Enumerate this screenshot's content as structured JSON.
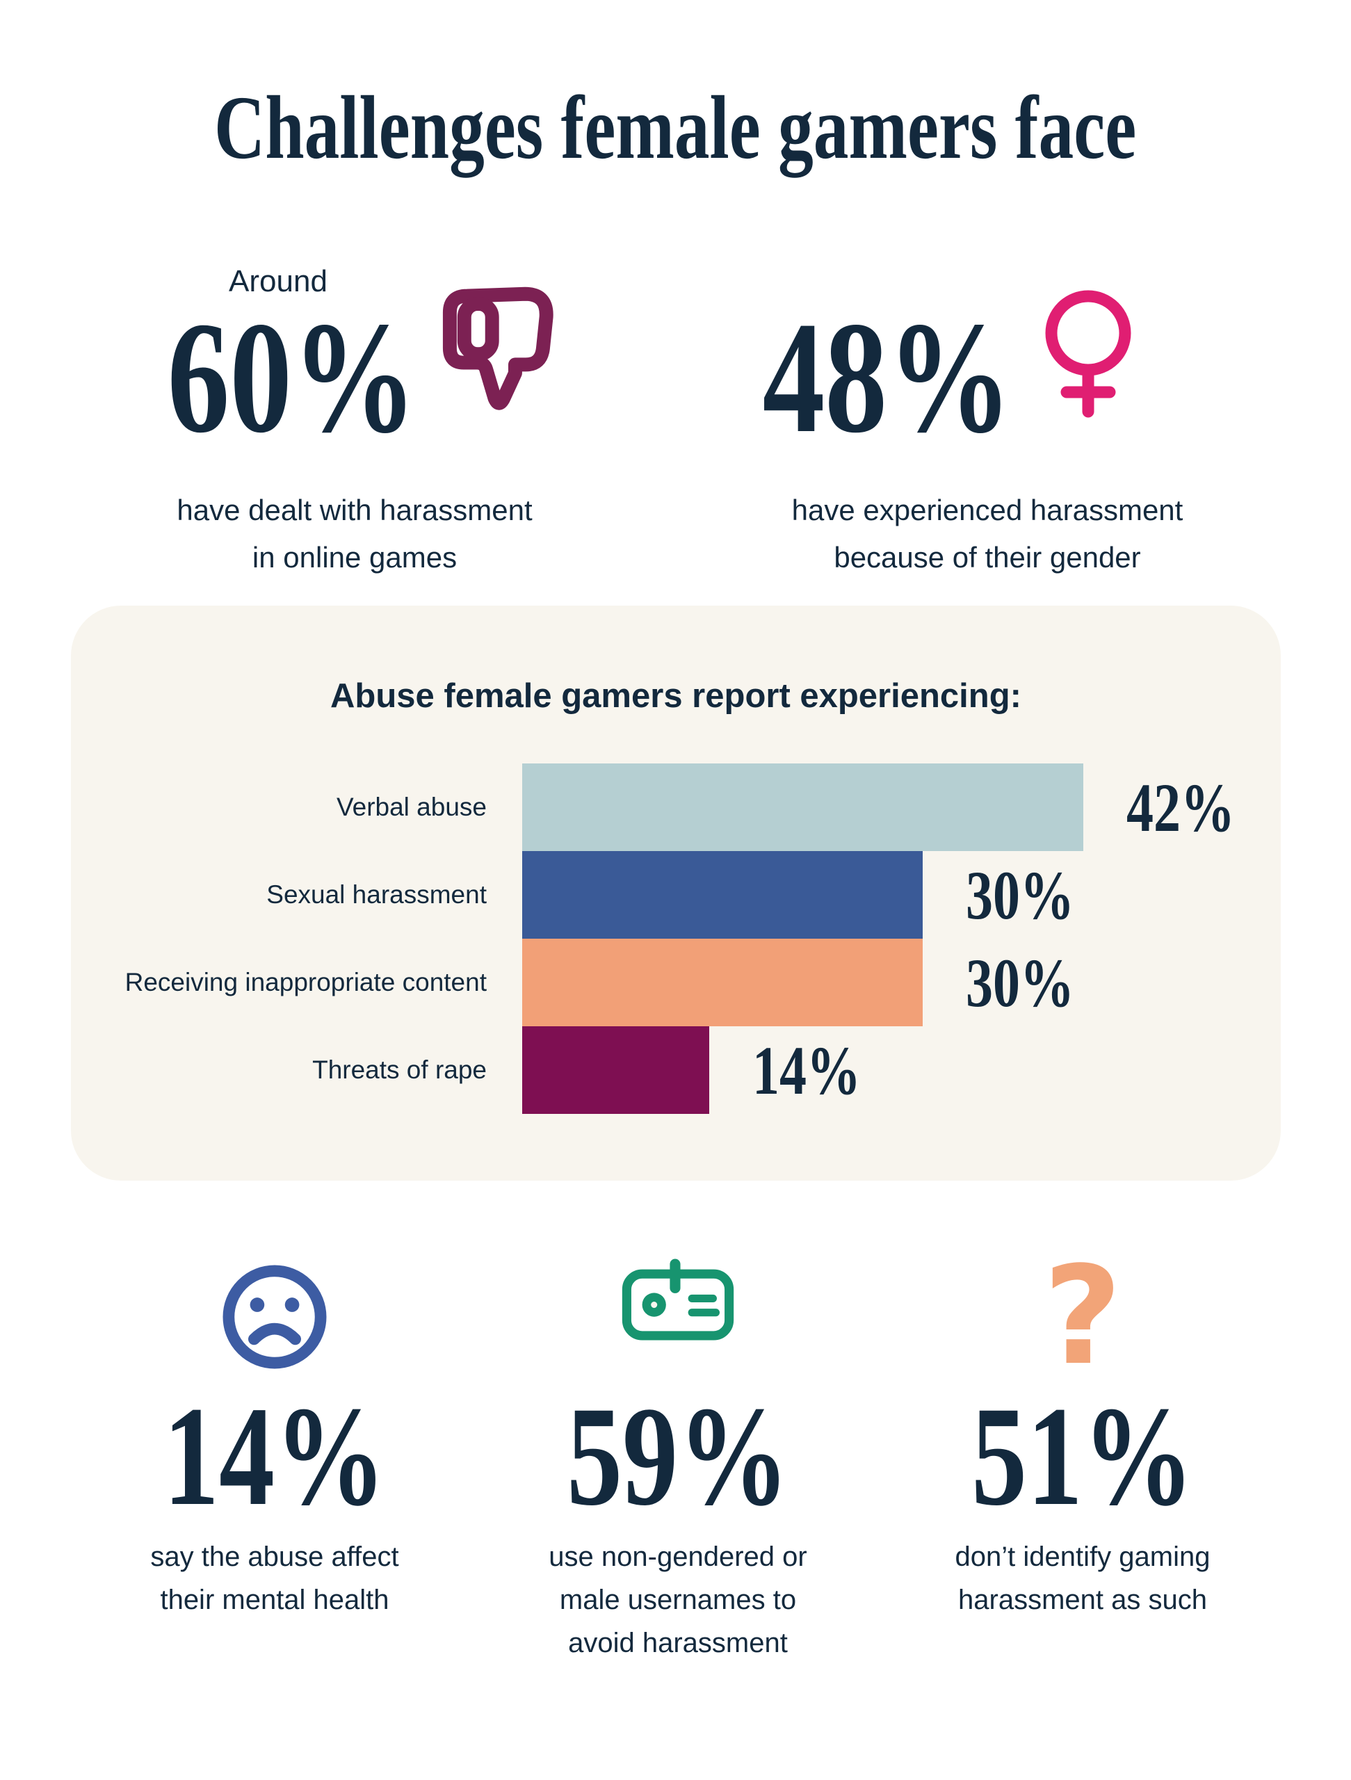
{
  "title": "Challenges female gamers face",
  "colors": {
    "page_bg": "#ffffff",
    "panel_bg": "#f8f5ee",
    "navy": "#13293d"
  },
  "icons": {
    "thumbs_down": {
      "name": "thumbs-down-icon",
      "color": "#7c2153"
    },
    "female": {
      "name": "female-icon",
      "color": "#e01e72"
    },
    "sad_face": {
      "name": "sad-face-icon",
      "color": "#3d5ca3"
    },
    "id_badge": {
      "name": "id-badge-icon",
      "color": "#17946f"
    },
    "question_mark": {
      "name": "question-mark-icon",
      "color": "#f2a478",
      "glyph": "?"
    }
  },
  "stats_top": [
    {
      "prefix": "Around",
      "value": "60%",
      "caption": "have dealt with harassment\nin online games"
    },
    {
      "prefix": "",
      "value": "48%",
      "caption": "have experienced harassment\nbecause of their gender"
    }
  ],
  "chart_data": {
    "type": "bar",
    "orientation": "horizontal",
    "title": "Abuse female gamers report experiencing:",
    "categories": [
      "Verbal abuse",
      "Sexual harassment",
      "Receiving inappropriate content",
      "Threats of rape"
    ],
    "values": [
      42,
      30,
      30,
      14
    ],
    "value_labels": [
      "42%",
      "30%",
      "30%",
      "14%"
    ],
    "bar_colors": [
      "#b5cfd2",
      "#3a5a97",
      "#f2a077",
      "#7e0f52"
    ],
    "xlim": [
      0,
      42
    ],
    "grid": false,
    "value_label_position": "right",
    "legend": false
  },
  "stats_bottom": [
    {
      "value": "14%",
      "caption": "say the abuse affect\ntheir mental health"
    },
    {
      "value": "59%",
      "caption": "use non-gendered or\nmale usernames to\navoid harassment"
    },
    {
      "value": "51%",
      "caption": "don’t identify gaming\nharassment as such"
    }
  ]
}
